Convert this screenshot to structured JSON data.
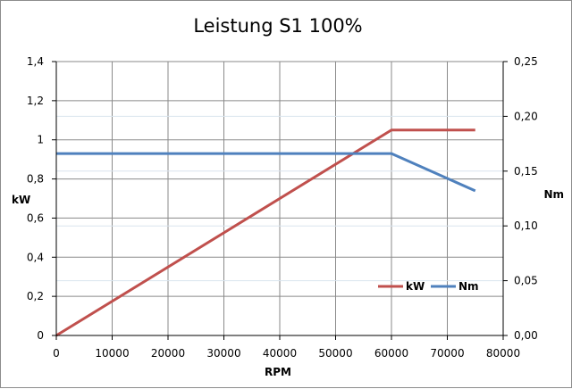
{
  "chart_data": {
    "type": "line",
    "title": "Leistung S1 100%",
    "xlabel": "RPM",
    "ylabel": "kW",
    "y2label": "Nm",
    "xlim": [
      0,
      80000
    ],
    "ylim": [
      0,
      1.4
    ],
    "y2lim": [
      0,
      0.25
    ],
    "x_ticks": [
      "0",
      "10000",
      "20000",
      "30000",
      "40000",
      "50000",
      "60000",
      "70000",
      "80000"
    ],
    "y_ticks": [
      "0",
      "0,2",
      "0,4",
      "0,6",
      "0,8",
      "1",
      "1,2",
      "1,4"
    ],
    "y2_ticks": [
      "0,00",
      "0,05",
      "0,10",
      "0,15",
      "0,20",
      "0,25"
    ],
    "grid": true,
    "legend_position": "bottom-right",
    "series": [
      {
        "name": "kW",
        "axis": "left",
        "color": "#c0504d",
        "x": [
          0,
          60000,
          75000
        ],
        "y": [
          0,
          1.05,
          1.05
        ]
      },
      {
        "name": "Nm",
        "axis": "right",
        "color": "#4f81bd",
        "x": [
          0,
          60000,
          75000
        ],
        "y": [
          0.166,
          0.166,
          0.132
        ]
      }
    ]
  }
}
